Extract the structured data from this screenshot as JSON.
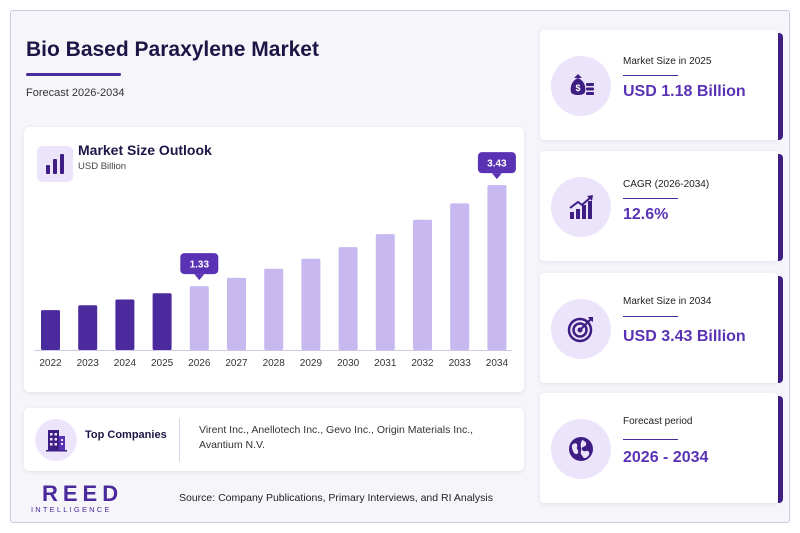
{
  "header": {
    "title": "Bio Based Paraxylene Market",
    "subtitle": "Forecast 2026-2034"
  },
  "chart_card": {
    "icon": "bar-chart-icon",
    "title": "Market Size Outlook",
    "unit": "USD Billion"
  },
  "chart_data": {
    "type": "bar",
    "title": "Market Size Outlook",
    "ylabel": "USD Billion",
    "categories": [
      "2022",
      "2023",
      "2024",
      "2025",
      "2026",
      "2027",
      "2028",
      "2029",
      "2030",
      "2031",
      "2032",
      "2033",
      "2034"
    ],
    "values": [
      0.83,
      0.93,
      1.05,
      1.18,
      1.33,
      1.5,
      1.69,
      1.9,
      2.14,
      2.41,
      2.71,
      3.05,
      3.43
    ],
    "ylim": [
      0,
      3.6
    ],
    "grid": false,
    "historical_color": "#4b2a9e",
    "forecast_color": "#c7b8f0",
    "callouts": [
      {
        "category": "2026",
        "label": "1.33"
      },
      {
        "category": "2034",
        "label": "3.43"
      }
    ]
  },
  "companies": {
    "icon": "building-icon",
    "title": "Top Companies",
    "list": "Virent Inc., Anellotech Inc., Gevo Inc., Origin Materials Inc., Avantium N.V."
  },
  "logo": {
    "main": "REED",
    "sub": "INTELLIGENCE"
  },
  "source": "Source: Company Publications, Primary Interviews, and RI Analysis",
  "stats": [
    {
      "icon": "money-bag-icon",
      "label": "Market Size in 2025",
      "value": "USD 1.18 Billion"
    },
    {
      "icon": "growth-chart-icon",
      "label": "CAGR (2026-2034)",
      "value": "12.6%"
    },
    {
      "icon": "target-icon",
      "label": "Market Size in 2034",
      "value": "USD 3.43 Billion"
    },
    {
      "icon": "globe-icon",
      "label": "Forecast period",
      "value": "2026 - 2034"
    }
  ],
  "colors": {
    "accent": "#4b2a9e",
    "accent_dark": "#3f1e84",
    "value_text": "#5a33b5",
    "icon_bg": "#ece4fb"
  }
}
